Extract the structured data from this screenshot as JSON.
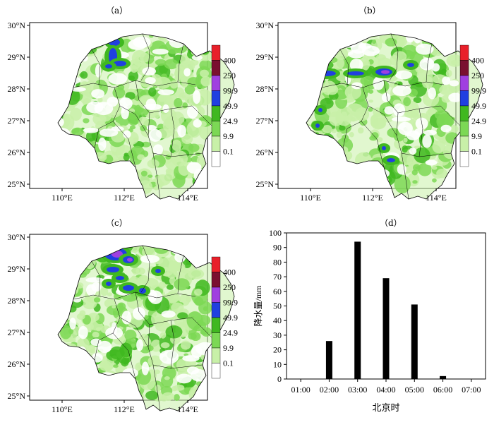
{
  "panels": [
    {
      "label": "（a）"
    },
    {
      "label": "（b）"
    },
    {
      "label": "（c）"
    },
    {
      "label": "（d）"
    }
  ],
  "map_axes": {
    "lat_labels": [
      "30°N",
      "29°N",
      "28°N",
      "27°N",
      "26°N",
      "25°N"
    ],
    "lon_labels": [
      "110°E",
      "112°E",
      "114°E"
    ]
  },
  "colorbar": {
    "levels": [
      "400",
      "250",
      "99.9",
      "49.9",
      "24.9",
      "9.9",
      "0.1"
    ],
    "colors": [
      "#e8202a",
      "#7a1030",
      "#a040e0",
      "#2040e0",
      "#40b820",
      "#7cd855",
      "#c8f0a8",
      "#ffffff"
    ]
  },
  "chart_data": {
    "type": "bar",
    "title": "（d）",
    "categories": [
      "01:00",
      "02:00",
      "03:00",
      "04:00",
      "05:00",
      "06:00",
      "07:00"
    ],
    "values": [
      0,
      26,
      94,
      69,
      51,
      2,
      0
    ],
    "xlabel": "北京时",
    "ylabel": "降水量/mm",
    "ylim": [
      0,
      100
    ],
    "yticks": [
      0,
      10,
      20,
      30,
      40,
      50,
      60,
      70,
      80,
      90,
      100
    ],
    "bar_color": "#000000"
  }
}
